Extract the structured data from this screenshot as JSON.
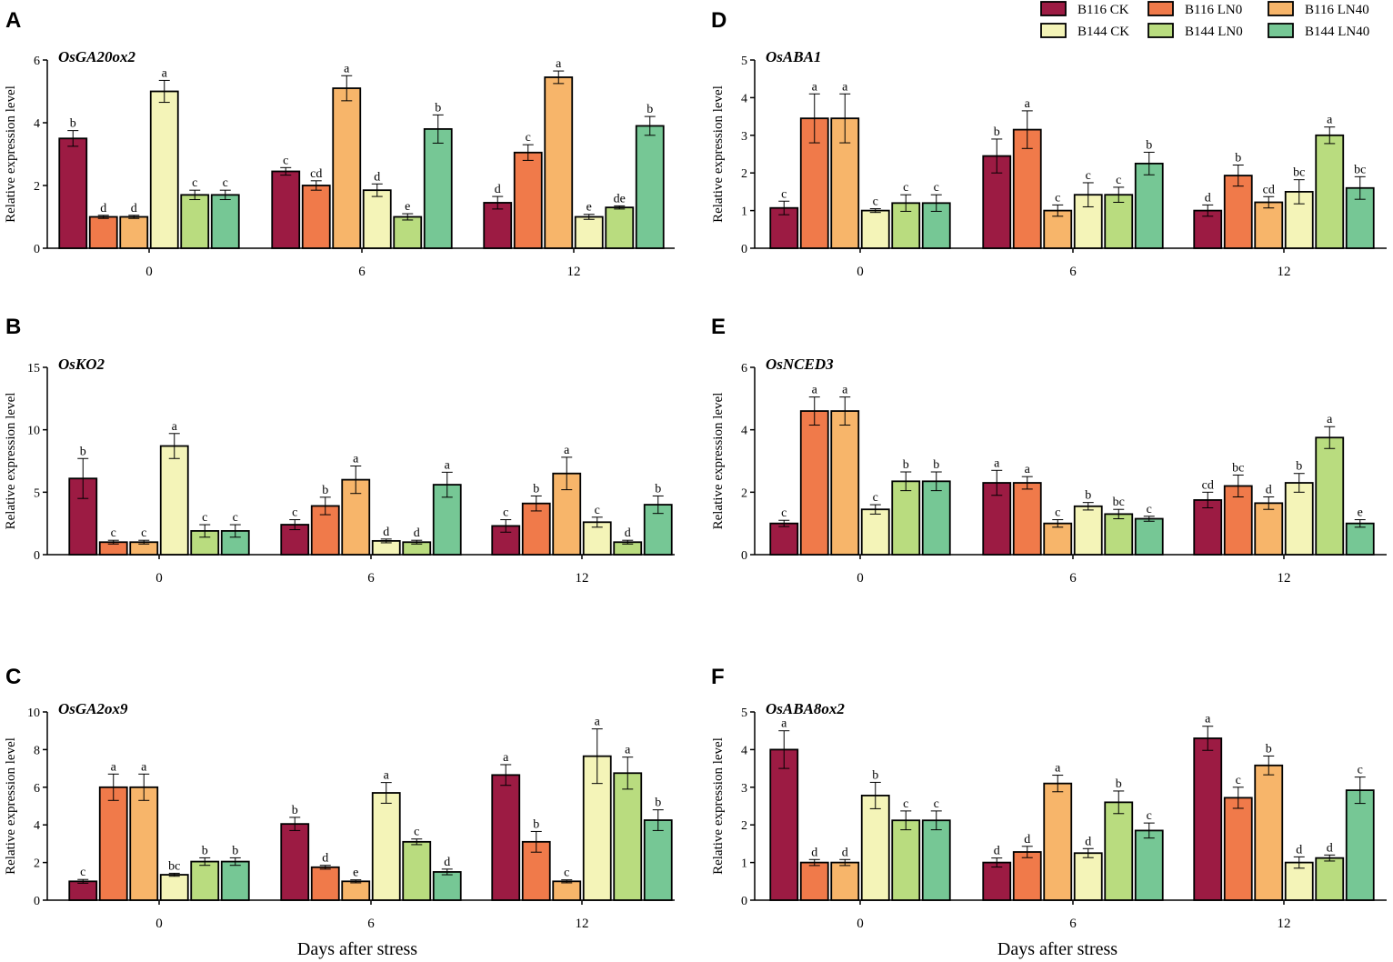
{
  "figure": {
    "legend": [
      {
        "label": "B116 CK",
        "color": "#9c1b43"
      },
      {
        "label": "B116 LN0",
        "color": "#f07a4a"
      },
      {
        "label": "B116 LN40",
        "color": "#f7b56a"
      },
      {
        "label": "B144 CK",
        "color": "#f4f4b8"
      },
      {
        "label": "B144 LN0",
        "color": "#b9dc7f"
      },
      {
        "label": "B144 LN40",
        "color": "#76c795"
      }
    ],
    "x_axis_title": "Days after stress"
  },
  "chart_data": [
    {
      "panel": "A",
      "type": "bar",
      "title": "OsGA20ox2",
      "ylabel": "Relative expression level",
      "xlabel": "Days after stress",
      "ylim": [
        0,
        6
      ],
      "yticks": [
        0,
        2,
        4,
        6
      ],
      "categories": [
        "0",
        "6",
        "12"
      ],
      "series": [
        {
          "name": "B116 CK",
          "values": [
            3.5,
            2.45,
            1.45
          ],
          "errors": [
            0.25,
            0.12,
            0.2
          ],
          "labels": [
            "b",
            "c",
            "d"
          ]
        },
        {
          "name": "B116 LN0",
          "values": [
            1.0,
            2.0,
            3.05
          ],
          "errors": [
            0.05,
            0.15,
            0.25
          ],
          "labels": [
            "d",
            "cd",
            "c"
          ]
        },
        {
          "name": "B116 LN40",
          "values": [
            1.0,
            5.1,
            5.45
          ],
          "errors": [
            0.05,
            0.4,
            0.2
          ],
          "labels": [
            "d",
            "a",
            "a"
          ]
        },
        {
          "name": "B144 CK",
          "values": [
            5.0,
            1.85,
            1.0
          ],
          "errors": [
            0.35,
            0.2,
            0.08
          ],
          "labels": [
            "a",
            "d",
            "e"
          ]
        },
        {
          "name": "B144 LN0",
          "values": [
            1.7,
            1.0,
            1.3
          ],
          "errors": [
            0.15,
            0.1,
            0.05
          ],
          "labels": [
            "c",
            "e",
            "de"
          ]
        },
        {
          "name": "B144 LN40",
          "values": [
            1.7,
            3.8,
            3.9
          ],
          "errors": [
            0.15,
            0.45,
            0.3
          ],
          "labels": [
            "c",
            "b",
            "b"
          ]
        }
      ]
    },
    {
      "panel": "B",
      "type": "bar",
      "title": "OsKO2",
      "ylabel": "Relative expression level",
      "xlabel": "Days after stress",
      "ylim": [
        0,
        15
      ],
      "yticks": [
        0,
        5,
        10,
        15
      ],
      "categories": [
        "0",
        "6",
        "12"
      ],
      "series": [
        {
          "name": "B116 CK",
          "values": [
            6.1,
            2.4,
            2.3
          ],
          "errors": [
            1.6,
            0.4,
            0.5
          ],
          "labels": [
            "b",
            "c",
            "c"
          ]
        },
        {
          "name": "B116 LN0",
          "values": [
            1.0,
            3.9,
            4.1
          ],
          "errors": [
            0.15,
            0.7,
            0.6
          ],
          "labels": [
            "c",
            "b",
            "b"
          ]
        },
        {
          "name": "B116 LN40",
          "values": [
            1.0,
            6.0,
            6.5
          ],
          "errors": [
            0.15,
            1.1,
            1.3
          ],
          "labels": [
            "c",
            "a",
            "a"
          ]
        },
        {
          "name": "B144 CK",
          "values": [
            8.7,
            1.1,
            2.6
          ],
          "errors": [
            1.0,
            0.15,
            0.4
          ],
          "labels": [
            "a",
            "d",
            "c"
          ]
        },
        {
          "name": "B144 LN0",
          "values": [
            1.9,
            1.0,
            1.0
          ],
          "errors": [
            0.5,
            0.15,
            0.15
          ],
          "labels": [
            "c",
            "d",
            "d"
          ]
        },
        {
          "name": "B144 LN40",
          "values": [
            1.9,
            5.6,
            4.0
          ],
          "errors": [
            0.5,
            1.0,
            0.7
          ],
          "labels": [
            "c",
            "a",
            "b"
          ]
        }
      ]
    },
    {
      "panel": "C",
      "type": "bar",
      "title": "OsGA2ox9",
      "ylabel": "Relative expression level",
      "xlabel": "Days after stress",
      "ylim": [
        0,
        10
      ],
      "yticks": [
        0,
        2,
        4,
        6,
        8,
        10
      ],
      "categories": [
        "0",
        "6",
        "12"
      ],
      "series": [
        {
          "name": "B116 CK",
          "values": [
            1.0,
            4.05,
            6.65
          ],
          "errors": [
            0.1,
            0.35,
            0.55
          ],
          "labels": [
            "c",
            "b",
            "a"
          ]
        },
        {
          "name": "B116 LN0",
          "values": [
            6.0,
            1.75,
            3.1
          ],
          "errors": [
            0.7,
            0.1,
            0.55
          ],
          "labels": [
            "a",
            "d",
            "b"
          ]
        },
        {
          "name": "B116 LN40",
          "values": [
            6.0,
            1.0,
            1.0
          ],
          "errors": [
            0.7,
            0.08,
            0.08
          ],
          "labels": [
            "a",
            "e",
            "c"
          ]
        },
        {
          "name": "B144 CK",
          "values": [
            1.35,
            5.7,
            7.65
          ],
          "errors": [
            0.08,
            0.55,
            1.45
          ],
          "labels": [
            "bc",
            "a",
            "a"
          ]
        },
        {
          "name": "B144 LN0",
          "values": [
            2.05,
            3.1,
            6.75
          ],
          "errors": [
            0.2,
            0.15,
            0.85
          ],
          "labels": [
            "b",
            "c",
            "a"
          ]
        },
        {
          "name": "B144 LN40",
          "values": [
            2.05,
            1.5,
            4.25
          ],
          "errors": [
            0.2,
            0.15,
            0.55
          ],
          "labels": [
            "b",
            "d",
            "b"
          ]
        }
      ]
    },
    {
      "panel": "D",
      "type": "bar",
      "title": "OsABA1",
      "ylabel": "Relative expression level",
      "xlabel": "Days after stress",
      "ylim": [
        0,
        5
      ],
      "yticks": [
        0,
        1,
        2,
        3,
        4,
        5
      ],
      "categories": [
        "0",
        "6",
        "12"
      ],
      "series": [
        {
          "name": "B116 CK",
          "values": [
            1.07,
            2.45,
            1.0
          ],
          "errors": [
            0.18,
            0.45,
            0.15
          ],
          "labels": [
            "c",
            "b",
            "d"
          ]
        },
        {
          "name": "B116 LN0",
          "values": [
            3.45,
            3.15,
            1.93
          ],
          "errors": [
            0.65,
            0.5,
            0.28
          ],
          "labels": [
            "a",
            "a",
            "b"
          ]
        },
        {
          "name": "B116 LN40",
          "values": [
            3.45,
            1.0,
            1.22
          ],
          "errors": [
            0.65,
            0.15,
            0.15
          ],
          "labels": [
            "a",
            "c",
            "cd"
          ]
        },
        {
          "name": "B144 CK",
          "values": [
            1.0,
            1.42,
            1.5
          ],
          "errors": [
            0.05,
            0.32,
            0.32
          ],
          "labels": [
            "c",
            "c",
            "bc"
          ]
        },
        {
          "name": "B144 LN0",
          "values": [
            1.2,
            1.42,
            3.0
          ],
          "errors": [
            0.22,
            0.2,
            0.22
          ],
          "labels": [
            "c",
            "c",
            "a"
          ]
        },
        {
          "name": "B144 LN40",
          "values": [
            1.2,
            2.25,
            1.6
          ],
          "errors": [
            0.22,
            0.3,
            0.3
          ],
          "labels": [
            "c",
            "b",
            "bc"
          ]
        }
      ]
    },
    {
      "panel": "E",
      "type": "bar",
      "title": "OsNCED3",
      "ylabel": "Relative expression level",
      "xlabel": "Days after stress",
      "ylim": [
        0,
        6
      ],
      "yticks": [
        0,
        2,
        4,
        6
      ],
      "categories": [
        "0",
        "6",
        "12"
      ],
      "series": [
        {
          "name": "B116 CK",
          "values": [
            1.0,
            2.3,
            1.75
          ],
          "errors": [
            0.1,
            0.4,
            0.25
          ],
          "labels": [
            "c",
            "a",
            "cd"
          ]
        },
        {
          "name": "B116 LN0",
          "values": [
            4.6,
            2.3,
            2.2
          ],
          "errors": [
            0.45,
            0.2,
            0.35
          ],
          "labels": [
            "a",
            "a",
            "bc"
          ]
        },
        {
          "name": "B116 LN40",
          "values": [
            4.6,
            1.0,
            1.65
          ],
          "errors": [
            0.45,
            0.12,
            0.2
          ],
          "labels": [
            "a",
            "c",
            "d"
          ]
        },
        {
          "name": "B144 CK",
          "values": [
            1.45,
            1.55,
            2.3
          ],
          "errors": [
            0.15,
            0.12,
            0.3
          ],
          "labels": [
            "c",
            "b",
            "b"
          ]
        },
        {
          "name": "B144 LN0",
          "values": [
            2.35,
            1.3,
            3.75
          ],
          "errors": [
            0.3,
            0.15,
            0.35
          ],
          "labels": [
            "b",
            "bc",
            "a"
          ]
        },
        {
          "name": "B144 LN40",
          "values": [
            2.35,
            1.15,
            1.0
          ],
          "errors": [
            0.3,
            0.08,
            0.12
          ],
          "labels": [
            "b",
            "c",
            "e"
          ]
        }
      ]
    },
    {
      "panel": "F",
      "type": "bar",
      "title": "OsABA8ox2",
      "ylabel": "Relative expression level",
      "xlabel": "Days after stress",
      "ylim": [
        0,
        5
      ],
      "yticks": [
        0,
        1,
        2,
        3,
        4,
        5
      ],
      "categories": [
        "0",
        "6",
        "12"
      ],
      "series": [
        {
          "name": "B116 CK",
          "values": [
            4.0,
            1.0,
            4.3
          ],
          "errors": [
            0.5,
            0.12,
            0.32
          ],
          "labels": [
            "a",
            "d",
            "a"
          ]
        },
        {
          "name": "B116 LN0",
          "values": [
            1.0,
            1.28,
            2.72
          ],
          "errors": [
            0.08,
            0.15,
            0.28
          ],
          "labels": [
            "d",
            "d",
            "c"
          ]
        },
        {
          "name": "B116 LN40",
          "values": [
            1.0,
            3.1,
            3.58
          ],
          "errors": [
            0.08,
            0.22,
            0.25
          ],
          "labels": [
            "d",
            "a",
            "b"
          ]
        },
        {
          "name": "B144 CK",
          "values": [
            2.78,
            1.25,
            1.0
          ],
          "errors": [
            0.35,
            0.12,
            0.15
          ],
          "labels": [
            "b",
            "d",
            "d"
          ]
        },
        {
          "name": "B144 LN0",
          "values": [
            2.12,
            2.6,
            1.12
          ],
          "errors": [
            0.25,
            0.3,
            0.08
          ],
          "labels": [
            "c",
            "b",
            "d"
          ]
        },
        {
          "name": "B144 LN40",
          "values": [
            2.12,
            1.85,
            2.92
          ],
          "errors": [
            0.25,
            0.2,
            0.35
          ],
          "labels": [
            "c",
            "c",
            "c"
          ]
        }
      ]
    }
  ]
}
